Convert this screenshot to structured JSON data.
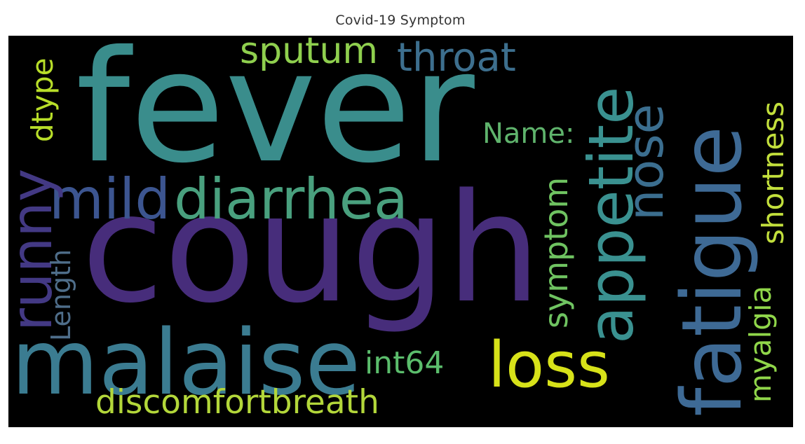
{
  "title": "Covid-19 Symptom",
  "cloud": {
    "background": "#000000",
    "words": [
      {
        "text": "fever",
        "color": "#3a8d8c"
      },
      {
        "text": "cough",
        "color": "#472d7b"
      },
      {
        "text": "malaise",
        "color": "#3b7c91"
      },
      {
        "text": "fatigue",
        "color": "#3e6a95"
      },
      {
        "text": "appetite",
        "color": "#3a9190"
      },
      {
        "text": "diarrhea",
        "color": "#49a07e"
      },
      {
        "text": "mild",
        "color": "#3c5590"
      },
      {
        "text": "runny",
        "color": "#433984"
      },
      {
        "text": "loss",
        "color": "#d7e219"
      },
      {
        "text": "nose",
        "color": "#3b6e8f"
      },
      {
        "text": "throat",
        "color": "#3d6f8e"
      },
      {
        "text": "sputum",
        "color": "#8fcf4e"
      },
      {
        "text": "discomfortbreath",
        "color": "#b3d73a"
      },
      {
        "text": "symptom",
        "color": "#6fc361"
      },
      {
        "text": "shortness",
        "color": "#c2df3c"
      },
      {
        "text": "myalgia",
        "color": "#90d64a"
      },
      {
        "text": "int64",
        "color": "#5bbd6c"
      },
      {
        "text": "Name:",
        "color": "#5fb36c"
      },
      {
        "text": "dtype",
        "color": "#b8de29"
      },
      {
        "text": "Length",
        "color": "#4f6e8a"
      }
    ]
  }
}
